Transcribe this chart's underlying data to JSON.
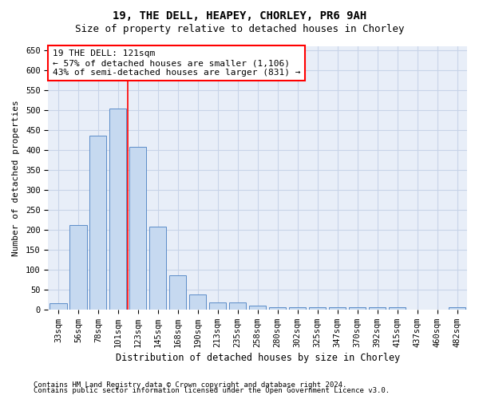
{
  "title1": "19, THE DELL, HEAPEY, CHORLEY, PR6 9AH",
  "title2": "Size of property relative to detached houses in Chorley",
  "xlabel": "Distribution of detached houses by size in Chorley",
  "ylabel": "Number of detached properties",
  "categories": [
    "33sqm",
    "56sqm",
    "78sqm",
    "101sqm",
    "123sqm",
    "145sqm",
    "168sqm",
    "190sqm",
    "213sqm",
    "235sqm",
    "258sqm",
    "280sqm",
    "302sqm",
    "325sqm",
    "347sqm",
    "370sqm",
    "392sqm",
    "415sqm",
    "437sqm",
    "460sqm",
    "482sqm"
  ],
  "values": [
    15,
    212,
    435,
    503,
    408,
    207,
    85,
    38,
    18,
    18,
    10,
    5,
    5,
    5,
    5,
    5,
    5,
    5,
    0,
    0,
    5
  ],
  "bar_color": "#c6d9f0",
  "bar_edge_color": "#5b8cc8",
  "bar_width": 0.85,
  "ylim": [
    0,
    660
  ],
  "yticks": [
    0,
    50,
    100,
    150,
    200,
    250,
    300,
    350,
    400,
    450,
    500,
    550,
    600,
    650
  ],
  "red_line_x": 3.5,
  "annotation_line1": "19 THE DELL: 121sqm",
  "annotation_line2": "← 57% of detached houses are smaller (1,106)",
  "annotation_line3": "43% of semi-detached houses are larger (831) →",
  "background_color": "#ffffff",
  "plot_bg_color": "#e8eef8",
  "grid_color": "#c8d4e8",
  "footnote1": "Contains HM Land Registry data © Crown copyright and database right 2024.",
  "footnote2": "Contains public sector information licensed under the Open Government Licence v3.0.",
  "title1_fontsize": 10,
  "title2_fontsize": 9,
  "xlabel_fontsize": 8.5,
  "ylabel_fontsize": 8,
  "tick_fontsize": 7.5,
  "annot_fontsize": 8,
  "footnote_fontsize": 6.5
}
